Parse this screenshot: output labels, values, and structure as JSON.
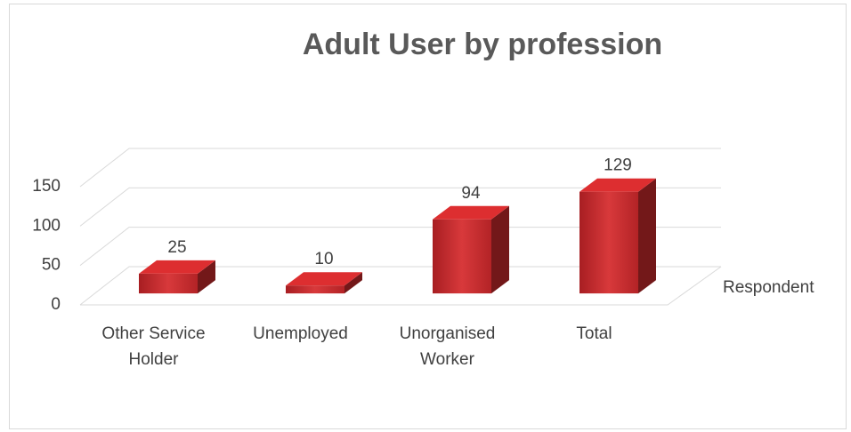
{
  "chart_data": {
    "type": "bar3d",
    "title": "Adult User by profession",
    "categories": [
      "Other Service Holder",
      "Unemployed",
      "Unorganised Worker",
      "Total"
    ],
    "series": [
      {
        "name": "Respondent",
        "color": "#c0282a",
        "values": [
          25,
          10,
          94,
          129
        ]
      }
    ],
    "ylim": [
      0,
      150
    ],
    "yticks": [
      0,
      50,
      100,
      150
    ],
    "grid": true
  }
}
